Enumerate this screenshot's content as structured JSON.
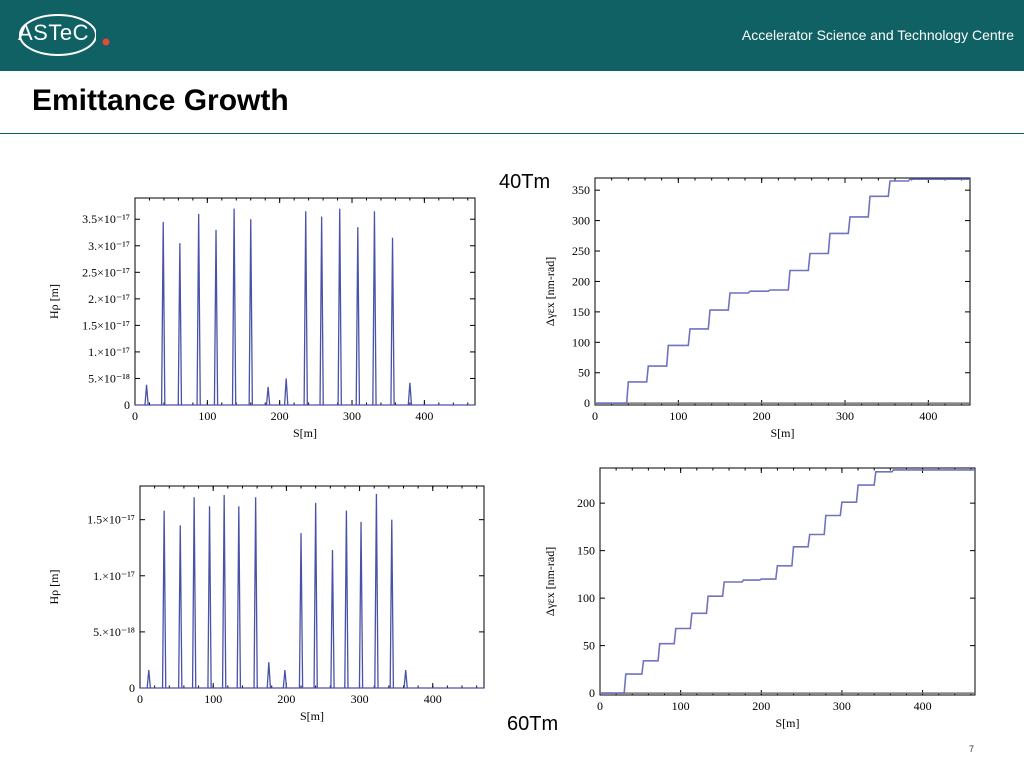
{
  "header": {
    "logo_text": "ASTeC",
    "tagline": "Accelerator Science and Technology Centre",
    "brand_color": "#0f6163",
    "logo_dot_color": "#e2483b"
  },
  "slide": {
    "title": "Emittance Growth",
    "label_40": "40Tm",
    "label_60": "60Tm",
    "page_number": "7"
  },
  "chart_data": [
    {
      "type": "line",
      "id": "hrho40",
      "xlabel": "S[m]",
      "ylabel": "Hρ [m]",
      "xlim": [
        0,
        470
      ],
      "ylim": [
        0,
        3.9e-17
      ],
      "xticks": [
        0,
        100,
        200,
        300,
        400
      ],
      "yticks": [
        {
          "v": 0,
          "t": "0"
        },
        {
          "v": 5e-18,
          "t": "5.×10⁻¹⁸"
        },
        {
          "v": 1e-17,
          "t": "1.×10⁻¹⁷"
        },
        {
          "v": 1.5e-17,
          "t": "1.5×10⁻¹⁷"
        },
        {
          "v": 2e-17,
          "t": "2.×10⁻¹⁷"
        },
        {
          "v": 2.5e-17,
          "t": "2.5×10⁻¹⁷"
        },
        {
          "v": 3e-17,
          "t": "3.×10⁻¹⁷"
        },
        {
          "v": 3.5e-17,
          "t": "3.5×10⁻¹⁷"
        }
      ],
      "color": "#4a52a8",
      "spikes": [
        [
          16,
          3.8e-18
        ],
        [
          39,
          3.45e-17
        ],
        [
          62,
          3.05e-17
        ],
        [
          88,
          3.6e-17
        ],
        [
          112,
          3.3e-17
        ],
        [
          137,
          3.7e-17
        ],
        [
          160,
          3.5e-17
        ],
        [
          184,
          3.4e-18
        ],
        [
          209,
          5e-18
        ],
        [
          236,
          3.65e-17
        ],
        [
          258,
          3.55e-17
        ],
        [
          283,
          3.7e-17
        ],
        [
          308,
          3.35e-17
        ],
        [
          331,
          3.65e-17
        ],
        [
          356,
          3.15e-17
        ],
        [
          380,
          4.2e-18
        ]
      ]
    },
    {
      "type": "line",
      "id": "eps40",
      "xlabel": "S[m]",
      "ylabel": "Δγεx [nm-rad]",
      "xlim": [
        0,
        450
      ],
      "ylim": [
        -3,
        370
      ],
      "xticks": [
        0,
        100,
        200,
        300,
        400
      ],
      "yticks": [
        0,
        50,
        100,
        150,
        200,
        250,
        300,
        350
      ],
      "color": "#6f74c0",
      "steps": [
        [
          0,
          0
        ],
        [
          38,
          0
        ],
        [
          40,
          35
        ],
        [
          62,
          35
        ],
        [
          64,
          61
        ],
        [
          86,
          61
        ],
        [
          88,
          95
        ],
        [
          112,
          95
        ],
        [
          114,
          122
        ],
        [
          136,
          122
        ],
        [
          138,
          153
        ],
        [
          160,
          153
        ],
        [
          162,
          181
        ],
        [
          184,
          181
        ],
        [
          186,
          184
        ],
        [
          208,
          184
        ],
        [
          210,
          186
        ],
        [
          232,
          186
        ],
        [
          234,
          218
        ],
        [
          256,
          218
        ],
        [
          258,
          246
        ],
        [
          280,
          246
        ],
        [
          282,
          279
        ],
        [
          304,
          279
        ],
        [
          306,
          306
        ],
        [
          328,
          306
        ],
        [
          330,
          340
        ],
        [
          352,
          340
        ],
        [
          354,
          365
        ],
        [
          376,
          365
        ],
        [
          378,
          368
        ],
        [
          450,
          368
        ]
      ]
    },
    {
      "type": "line",
      "id": "hrho60",
      "xlabel": "S[m]",
      "ylabel": "Hρ [m]",
      "xlim": [
        0,
        470
      ],
      "ylim": [
        0,
        1.8e-17
      ],
      "xticks": [
        0,
        100,
        200,
        300,
        400
      ],
      "yticks": [
        {
          "v": 0,
          "t": "0"
        },
        {
          "v": 5e-18,
          "t": "5.×10⁻¹⁸"
        },
        {
          "v": 1e-17,
          "t": "1.×10⁻¹⁷"
        },
        {
          "v": 1.5e-17,
          "t": "1.5×10⁻¹⁷"
        }
      ],
      "color": "#4a52a8",
      "spikes": [
        [
          12,
          1.6e-18
        ],
        [
          33,
          1.58e-17
        ],
        [
          55,
          1.45e-17
        ],
        [
          74,
          1.7e-17
        ],
        [
          95,
          1.62e-17
        ],
        [
          115,
          1.72e-17
        ],
        [
          135,
          1.62e-17
        ],
        [
          158,
          1.7e-17
        ],
        [
          176,
          2.3e-18
        ],
        [
          198,
          1.6e-18
        ],
        [
          220,
          1.38e-17
        ],
        [
          240,
          1.65e-17
        ],
        [
          263,
          1.23e-17
        ],
        [
          282,
          1.58e-17
        ],
        [
          302,
          1.48e-17
        ],
        [
          323,
          1.73e-17
        ],
        [
          344,
          1.5e-17
        ],
        [
          363,
          1.6e-18
        ]
      ]
    },
    {
      "type": "line",
      "id": "eps60",
      "xlabel": "S[m]",
      "ylabel": "Δγεx [nm-rad]",
      "xlim": [
        0,
        465
      ],
      "ylim": [
        -2,
        237
      ],
      "xticks": [
        0,
        100,
        200,
        300,
        400
      ],
      "yticks": [
        0,
        50,
        100,
        150,
        200
      ],
      "color": "#6f74c0",
      "steps": [
        [
          0,
          0
        ],
        [
          30,
          0
        ],
        [
          32,
          20
        ],
        [
          52,
          20
        ],
        [
          54,
          34
        ],
        [
          72,
          34
        ],
        [
          74,
          52
        ],
        [
          92,
          52
        ],
        [
          94,
          68
        ],
        [
          112,
          68
        ],
        [
          114,
          84
        ],
        [
          132,
          84
        ],
        [
          134,
          102
        ],
        [
          152,
          102
        ],
        [
          154,
          117
        ],
        [
          176,
          117
        ],
        [
          178,
          119
        ],
        [
          198,
          119
        ],
        [
          200,
          120
        ],
        [
          218,
          120
        ],
        [
          220,
          134
        ],
        [
          238,
          134
        ],
        [
          240,
          154
        ],
        [
          258,
          154
        ],
        [
          260,
          167
        ],
        [
          278,
          167
        ],
        [
          280,
          187
        ],
        [
          298,
          187
        ],
        [
          300,
          201
        ],
        [
          318,
          201
        ],
        [
          320,
          219
        ],
        [
          340,
          219
        ],
        [
          342,
          233
        ],
        [
          362,
          233
        ],
        [
          364,
          235
        ],
        [
          465,
          235
        ]
      ]
    }
  ]
}
